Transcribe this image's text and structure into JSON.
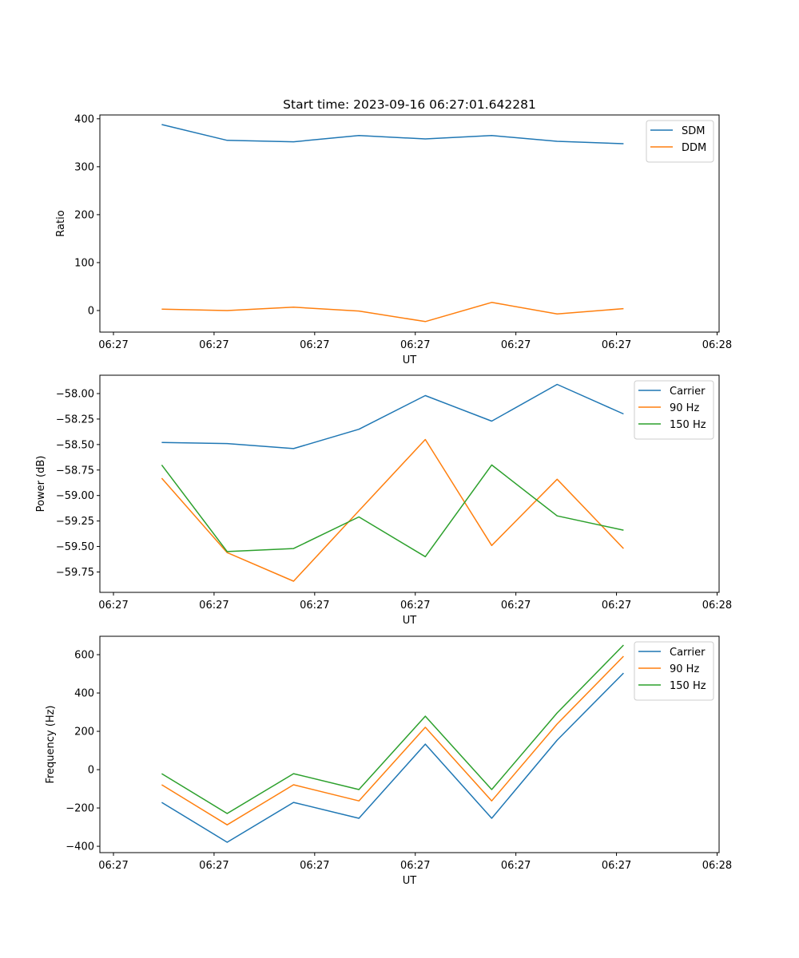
{
  "figure": {
    "title": "Start time: 2023-09-16 06:27:01.642281"
  },
  "chart_data": [
    {
      "type": "line",
      "title": "Start time: 2023-09-16 06:27:01.642281",
      "xlabel": "UT",
      "ylabel": "Ratio",
      "x_units": "seconds after 06:27:00",
      "x": [
        4.8,
        11.3,
        17.9,
        24.4,
        31.0,
        37.6,
        44.1,
        50.7
      ],
      "xlim": [
        -1.35,
        60.2
      ],
      "xticks": [
        0,
        10,
        20,
        30,
        40,
        50,
        60
      ],
      "xtick_labels": [
        "06:27",
        "06:27",
        "06:27",
        "06:27",
        "06:27",
        "06:27",
        "06:28"
      ],
      "ylim": [
        -45,
        408
      ],
      "yticks": [
        0,
        100,
        200,
        300,
        400
      ],
      "ytick_labels": [
        "0",
        "100",
        "200",
        "300",
        "400"
      ],
      "grid": false,
      "legend": "top-right",
      "series": [
        {
          "name": "SDM",
          "color": "#1f77b4",
          "values": [
            388,
            355,
            352,
            365,
            358,
            365,
            353,
            348
          ]
        },
        {
          "name": "DDM",
          "color": "#ff7f0e",
          "values": [
            3,
            0,
            7,
            -1,
            -23,
            17,
            -7,
            4
          ]
        }
      ]
    },
    {
      "type": "line",
      "title": "",
      "xlabel": "UT",
      "ylabel": "Power (dB)",
      "x_units": "seconds after 06:27:00",
      "x": [
        4.8,
        11.3,
        17.9,
        24.4,
        31.0,
        37.6,
        44.1,
        50.7
      ],
      "xlim": [
        -1.35,
        60.2
      ],
      "xticks": [
        0,
        10,
        20,
        30,
        40,
        50,
        60
      ],
      "xtick_labels": [
        "06:27",
        "06:27",
        "06:27",
        "06:27",
        "06:27",
        "06:27",
        "06:28"
      ],
      "ylim": [
        -59.95,
        -57.82
      ],
      "yticks": [
        -58.0,
        -58.25,
        -58.5,
        -58.75,
        -59.0,
        -59.25,
        -59.5,
        -59.75
      ],
      "ytick_labels": [
        "−58.00",
        "−58.25",
        "−58.50",
        "−58.75",
        "−59.00",
        "−59.25",
        "−59.50",
        "−59.75"
      ],
      "grid": false,
      "legend": "top-right",
      "series": [
        {
          "name": "Carrier",
          "color": "#1f77b4",
          "values": [
            -58.48,
            -58.49,
            -58.54,
            -58.35,
            -58.02,
            -58.27,
            -57.91,
            -58.2
          ]
        },
        {
          "name": "90 Hz",
          "color": "#ff7f0e",
          "values": [
            -58.83,
            -59.56,
            -59.84,
            -59.15,
            -58.45,
            -59.49,
            -58.84,
            -59.52
          ]
        },
        {
          "name": "150 Hz",
          "color": "#2ca02c",
          "values": [
            -58.7,
            -59.55,
            -59.52,
            -59.21,
            -59.6,
            -58.7,
            -59.2,
            -59.34
          ]
        }
      ]
    },
    {
      "type": "line",
      "title": "",
      "xlabel": "UT",
      "ylabel": "Frequency (Hz)",
      "x_units": "seconds after 06:27:00",
      "x": [
        4.8,
        11.3,
        17.9,
        24.4,
        31.0,
        37.6,
        44.1,
        50.7
      ],
      "xlim": [
        -1.35,
        60.2
      ],
      "xticks": [
        0,
        10,
        20,
        30,
        40,
        50,
        60
      ],
      "xtick_labels": [
        "06:27",
        "06:27",
        "06:27",
        "06:27",
        "06:27",
        "06:27",
        "06:28"
      ],
      "ylim": [
        -433,
        696
      ],
      "yticks": [
        -400,
        -200,
        0,
        200,
        400,
        600
      ],
      "ytick_labels": [
        "−400",
        "−200",
        "0",
        "200",
        "400",
        "600"
      ],
      "grid": false,
      "legend": "top-right",
      "series": [
        {
          "name": "Carrier",
          "color": "#1f77b4",
          "values": [
            -171,
            -379,
            -171,
            -254,
            133,
            -254,
            154,
            504
          ]
        },
        {
          "name": "90 Hz",
          "color": "#ff7f0e",
          "values": [
            -79,
            -288,
            -79,
            -163,
            221,
            -163,
            238,
            592
          ]
        },
        {
          "name": "150 Hz",
          "color": "#2ca02c",
          "values": [
            -21,
            -229,
            -21,
            -104,
            279,
            -104,
            296,
            650
          ]
        }
      ]
    }
  ]
}
